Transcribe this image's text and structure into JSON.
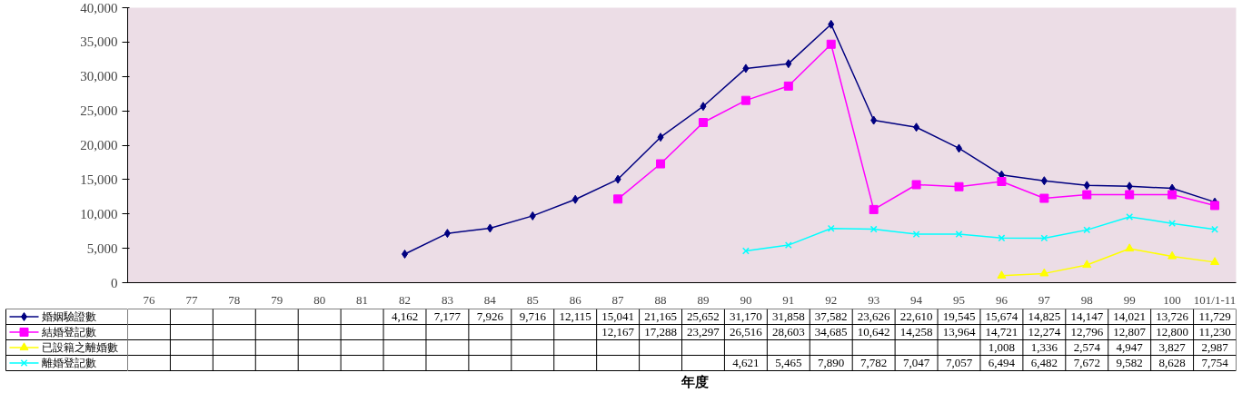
{
  "chart_data": {
    "type": "line",
    "annotations": [
      "年度"
    ],
    "categories": [
      "76",
      "77",
      "78",
      "79",
      "80",
      "81",
      "82",
      "83",
      "84",
      "85",
      "86",
      "87",
      "88",
      "89",
      "90",
      "91",
      "92",
      "93",
      "94",
      "95",
      "96",
      "97",
      "98",
      "99",
      "100",
      "101/1-11"
    ],
    "series": [
      {
        "name": "婚姻驗證數",
        "color": "#000080",
        "marker": "diamond",
        "values": [
          null,
          null,
          null,
          null,
          null,
          null,
          4162,
          7177,
          7926,
          9716,
          12115,
          15041,
          21165,
          25652,
          31170,
          31858,
          37582,
          23626,
          22610,
          19545,
          15674,
          14825,
          14147,
          14021,
          13726,
          11729
        ],
        "value_labels": [
          null,
          null,
          null,
          null,
          null,
          null,
          "4,162",
          "7,177",
          "7,926",
          "9,716",
          "12,115",
          "15,041",
          "21,165",
          "25,652",
          "31,170",
          "31,858",
          "37,582",
          "23,626",
          "22,610",
          "19,545",
          "15,674",
          "14,825",
          "14,147",
          "14,021",
          "13,726",
          "11,729"
        ]
      },
      {
        "name": "結婚登記數",
        "color": "#ff00ff",
        "marker": "square",
        "values": [
          null,
          null,
          null,
          null,
          null,
          null,
          null,
          null,
          null,
          null,
          null,
          12167,
          17288,
          23297,
          26516,
          28603,
          34685,
          10642,
          14258,
          13964,
          14721,
          12274,
          12796,
          12807,
          12800,
          11230
        ],
        "value_labels": [
          null,
          null,
          null,
          null,
          null,
          null,
          null,
          null,
          null,
          null,
          null,
          "12,167",
          "17,288",
          "23,297",
          "26,516",
          "28,603",
          "34,685",
          "10,642",
          "14,258",
          "13,964",
          "14,721",
          "12,274",
          "12,796",
          "12,807",
          "12,800",
          "11,230"
        ]
      },
      {
        "name": "已設籍之離婚數",
        "color": "#ffff00",
        "marker": "triangle",
        "values": [
          null,
          null,
          null,
          null,
          null,
          null,
          null,
          null,
          null,
          null,
          null,
          null,
          null,
          null,
          null,
          null,
          null,
          null,
          null,
          null,
          1008,
          1336,
          2574,
          4947,
          3827,
          2987
        ],
        "value_labels": [
          null,
          null,
          null,
          null,
          null,
          null,
          null,
          null,
          null,
          null,
          null,
          null,
          null,
          null,
          null,
          null,
          null,
          null,
          null,
          null,
          "1,008",
          "1,336",
          "2,574",
          "4,947",
          "3,827",
          "2,987"
        ]
      },
      {
        "name": "離婚登記數",
        "color": "#00ffff",
        "marker": "cross",
        "values": [
          null,
          null,
          null,
          null,
          null,
          null,
          null,
          null,
          null,
          null,
          null,
          null,
          null,
          null,
          4621,
          5465,
          7890,
          7782,
          7047,
          7057,
          6494,
          6482,
          7672,
          9582,
          8628,
          7754
        ],
        "value_labels": [
          null,
          null,
          null,
          null,
          null,
          null,
          null,
          null,
          null,
          null,
          null,
          null,
          null,
          null,
          "4,621",
          "5,465",
          "7,890",
          "7,782",
          "7,047",
          "7,057",
          "6,494",
          "6,482",
          "7,672",
          "9,582",
          "8,628",
          "7,754"
        ]
      }
    ],
    "ylim": [
      0,
      40000
    ],
    "yticks": [
      0,
      {
        "value": 5000,
        "label": "5,000"
      },
      {
        "value": 10000,
        "label": "10,000"
      },
      {
        "value": 15000,
        "label": "15,000"
      },
      {
        "value": 20000,
        "label": "20,000"
      },
      {
        "value": 25000,
        "label": "25,000"
      },
      {
        "value": 30000,
        "label": "30,000"
      },
      {
        "value": 35000,
        "label": "35,000"
      },
      {
        "value": 40000,
        "label": "40,000"
      }
    ],
    "legend": "bottom left"
  }
}
